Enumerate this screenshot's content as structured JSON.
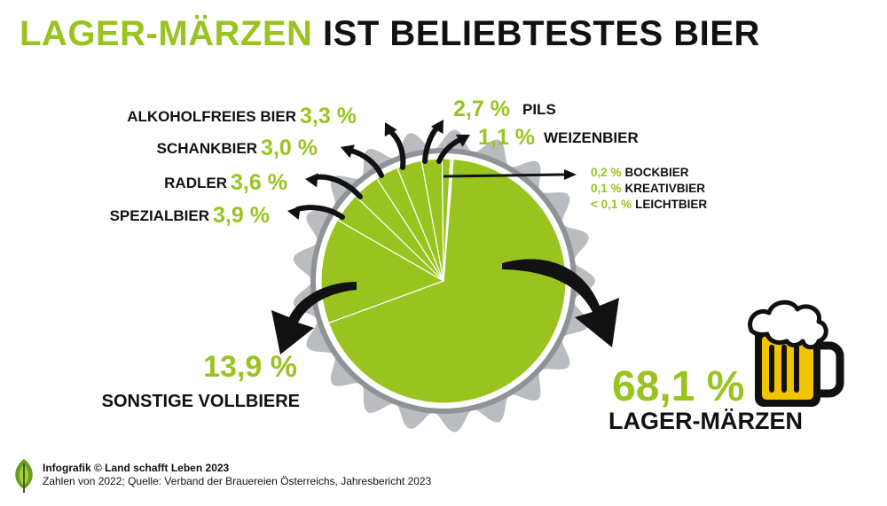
{
  "title": {
    "highlight": "LAGER-MÄRZEN",
    "rest": "IST BELIEBTESTES BIER"
  },
  "colors": {
    "accent": "#99c41f",
    "cap": "#b9bcc0",
    "text": "#111111",
    "beer": "#f2c400"
  },
  "chart_data": {
    "type": "pie",
    "unit": "%",
    "slices": [
      {
        "name": "LAGER-MÄRZEN",
        "value": 68.1,
        "label": "68,1 %"
      },
      {
        "name": "SONSTIGE VOLLBIERE",
        "value": 13.9,
        "label": "13,9 %"
      },
      {
        "name": "SPEZIALBIER",
        "value": 3.9,
        "label": "3,9 %"
      },
      {
        "name": "RADLER",
        "value": 3.6,
        "label": "3,6 %"
      },
      {
        "name": "SCHANKBIER",
        "value": 3.0,
        "label": "3,0 %"
      },
      {
        "name": "ALKOHOLFREIES BIER",
        "value": 3.3,
        "label": "3,3 %"
      },
      {
        "name": "PILS",
        "value": 2.7,
        "label": "2,7 %"
      },
      {
        "name": "WEIZENBIER",
        "value": 1.1,
        "label": "1,1 %"
      },
      {
        "name": "BOCKBIER",
        "value": 0.2,
        "label": "0,2 %"
      },
      {
        "name": "KREATIVBIER",
        "value": 0.1,
        "label": "0,1 %"
      },
      {
        "name": "LEICHTBIER",
        "value": 0.05,
        "label": "< 0,1 %"
      }
    ]
  },
  "footer": {
    "line1": "Infografik © Land schafft Leben 2023",
    "line2": "Zahlen von 2022; Quelle: Verband der Brauereien Österreichs, Jahresbericht 2023"
  },
  "icons": [
    "bottle-cap-icon",
    "beer-mug-icon",
    "leaf-logo-icon"
  ]
}
